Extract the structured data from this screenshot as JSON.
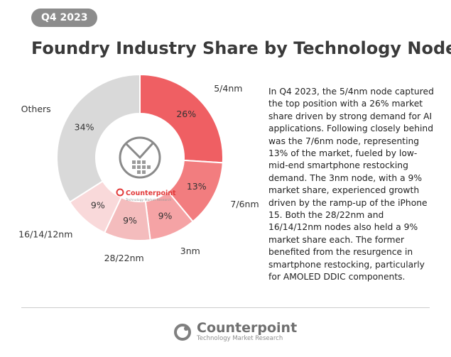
{
  "badge": "Q4 2023",
  "title": "Foundry Industry Share by Technology Node",
  "description": "In Q4 2023, the 5/4nm node captured the top position with a 26% market share driven by strong demand for AI applications. Following closely behind was the 7/6nm node, representing 13% of the market, fueled by low-mid-end smartphone restocking demand. The 3nm node, with a 9% market share, experienced growth driven by the ramp-up of the iPhone 15. Both the 28/22nm and 16/14/12nm nodes also held a 9% market share each. The former benefited from the resurgence in smartphone restocking, particularly for AMOLED DDIC components.",
  "center_logo": {
    "brand": "Counterpoint",
    "tagline": "Technology Market Research"
  },
  "footer": {
    "brand": "Counterpoint",
    "tagline": "Technology Market Research"
  },
  "chart_data": {
    "type": "pie",
    "style": "donut",
    "title": "Foundry Industry Share by Technology Node",
    "categories": [
      "5/4nm",
      "7/6nm",
      "3nm",
      "28/22nm",
      "16/14/12nm",
      "Others"
    ],
    "values": [
      26,
      13,
      9,
      9,
      9,
      34
    ],
    "labels": [
      "26%",
      "13%",
      "9%",
      "9%",
      "9%",
      "34%"
    ],
    "colors": [
      "#ef5f63",
      "#f27d7f",
      "#f5a3a5",
      "#f4bcbd",
      "#f9d9da",
      "#d9d9d9"
    ]
  }
}
